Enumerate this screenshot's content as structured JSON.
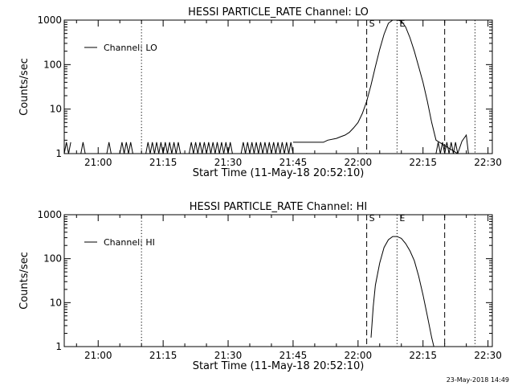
{
  "footer_date": "23-May-2018 14:49",
  "chart_data": [
    {
      "type": "line",
      "title": "HESSI PARTICLE_RATE Channel: LO",
      "xlabel": "Start Time (11-May-18 20:52:10)",
      "ylabel": "Counts/sec",
      "yscale": "log",
      "ylim": [
        1,
        1000
      ],
      "xlim": [
        "20:52:10",
        "22:31:00"
      ],
      "x_ticks": [
        "21:00",
        "21:15",
        "21:30",
        "21:45",
        "22:00",
        "22:15",
        "22:30"
      ],
      "y_ticks": [
        "1",
        "10",
        "100",
        "1000"
      ],
      "legend": {
        "placement": "top-left",
        "entries": [
          "Channel: LO"
        ]
      },
      "markers": [
        {
          "time": "21:10",
          "style": "dotted",
          "label": ""
        },
        {
          "time": "22:02",
          "style": "dashed",
          "label": "S"
        },
        {
          "time": "22:09",
          "style": "dotted",
          "label": "E"
        },
        {
          "time": "22:20",
          "style": "dashed",
          "label": ""
        },
        {
          "time": "22:27",
          "style": "dotted",
          "label": ""
        }
      ],
      "series": [
        {
          "name": "Channel: LO",
          "noise_segments": [
            {
              "from": "20:52:10",
              "to": "20:54:00"
            },
            {
              "from": "20:56:00",
              "to": "20:57:00"
            },
            {
              "from": "21:02:00",
              "to": "21:03:00"
            },
            {
              "from": "21:05:00",
              "to": "21:08:00"
            },
            {
              "from": "21:11:00",
              "to": "21:19:00"
            },
            {
              "from": "21:21:00",
              "to": "21:31:00"
            },
            {
              "from": "21:33:00",
              "to": "21:45:00"
            },
            {
              "from": "22:18:00",
              "to": "22:23:00"
            }
          ],
          "noise_range": [
            1,
            1.8
          ],
          "points": [
            [
              "21:45:00",
              1.8
            ],
            [
              "21:52:00",
              1.8
            ],
            [
              "21:53:00",
              2.0
            ],
            [
              "21:55:00",
              2.2
            ],
            [
              "21:56:00",
              2.4
            ],
            [
              "21:57:00",
              2.6
            ],
            [
              "21:58:00",
              3.0
            ],
            [
              "21:59:00",
              3.8
            ],
            [
              "22:00:00",
              5.0
            ],
            [
              "22:01:00",
              8.0
            ],
            [
              "22:02:00",
              15
            ],
            [
              "22:03:00",
              35
            ],
            [
              "22:04:00",
              90
            ],
            [
              "22:05:00",
              220
            ],
            [
              "22:06:00",
              480
            ],
            [
              "22:07:00",
              850
            ],
            [
              "22:08:00",
              1000
            ],
            [
              "22:09:00",
              1000
            ],
            [
              "22:10:00",
              960
            ],
            [
              "22:11:00",
              700
            ],
            [
              "22:12:00",
              400
            ],
            [
              "22:13:00",
              200
            ],
            [
              "22:14:00",
              90
            ],
            [
              "22:15:00",
              40
            ],
            [
              "22:16:00",
              15
            ],
            [
              "22:17:00",
              5
            ],
            [
              "22:18:00",
              2.0
            ],
            [
              "22:23:00",
              1.0
            ],
            [
              "22:24:00",
              1.9
            ],
            [
              "22:25:00",
              2.6
            ],
            [
              "22:25:30",
              1.0
            ]
          ]
        }
      ]
    },
    {
      "type": "line",
      "title": "HESSI PARTICLE_RATE Channel: HI",
      "xlabel": "Start Time (11-May-18 20:52:10)",
      "ylabel": "Counts/sec",
      "yscale": "log",
      "ylim": [
        1,
        1000
      ],
      "xlim": [
        "20:52:10",
        "22:31:00"
      ],
      "x_ticks": [
        "21:00",
        "21:15",
        "21:30",
        "21:45",
        "22:00",
        "22:15",
        "22:30"
      ],
      "y_ticks": [
        "1",
        "10",
        "100",
        "1000"
      ],
      "legend": {
        "placement": "top-left",
        "entries": [
          "Channel: HI"
        ]
      },
      "markers": [
        {
          "time": "21:10",
          "style": "dotted",
          "label": ""
        },
        {
          "time": "22:02",
          "style": "dashed",
          "label": "S"
        },
        {
          "time": "22:09",
          "style": "dotted",
          "label": "E"
        },
        {
          "time": "22:20",
          "style": "dashed",
          "label": ""
        },
        {
          "time": "22:27",
          "style": "dotted",
          "label": ""
        }
      ],
      "series": [
        {
          "name": "Channel: HI",
          "noise_segments": [],
          "noise_range": [
            1,
            1
          ],
          "points": [
            [
              "22:03:00",
              1.6
            ],
            [
              "22:03:30",
              8
            ],
            [
              "22:04:00",
              25
            ],
            [
              "22:05:00",
              80
            ],
            [
              "22:06:00",
              180
            ],
            [
              "22:07:00",
              270
            ],
            [
              "22:08:00",
              320
            ],
            [
              "22:09:00",
              320
            ],
            [
              "22:10:00",
              290
            ],
            [
              "22:11:00",
              220
            ],
            [
              "22:12:00",
              150
            ],
            [
              "22:13:00",
              90
            ],
            [
              "22:14:00",
              40
            ],
            [
              "22:15:00",
              15
            ],
            [
              "22:16:00",
              5
            ],
            [
              "22:17:00",
              1.6
            ],
            [
              "22:17:30",
              1.0
            ]
          ]
        }
      ]
    }
  ]
}
